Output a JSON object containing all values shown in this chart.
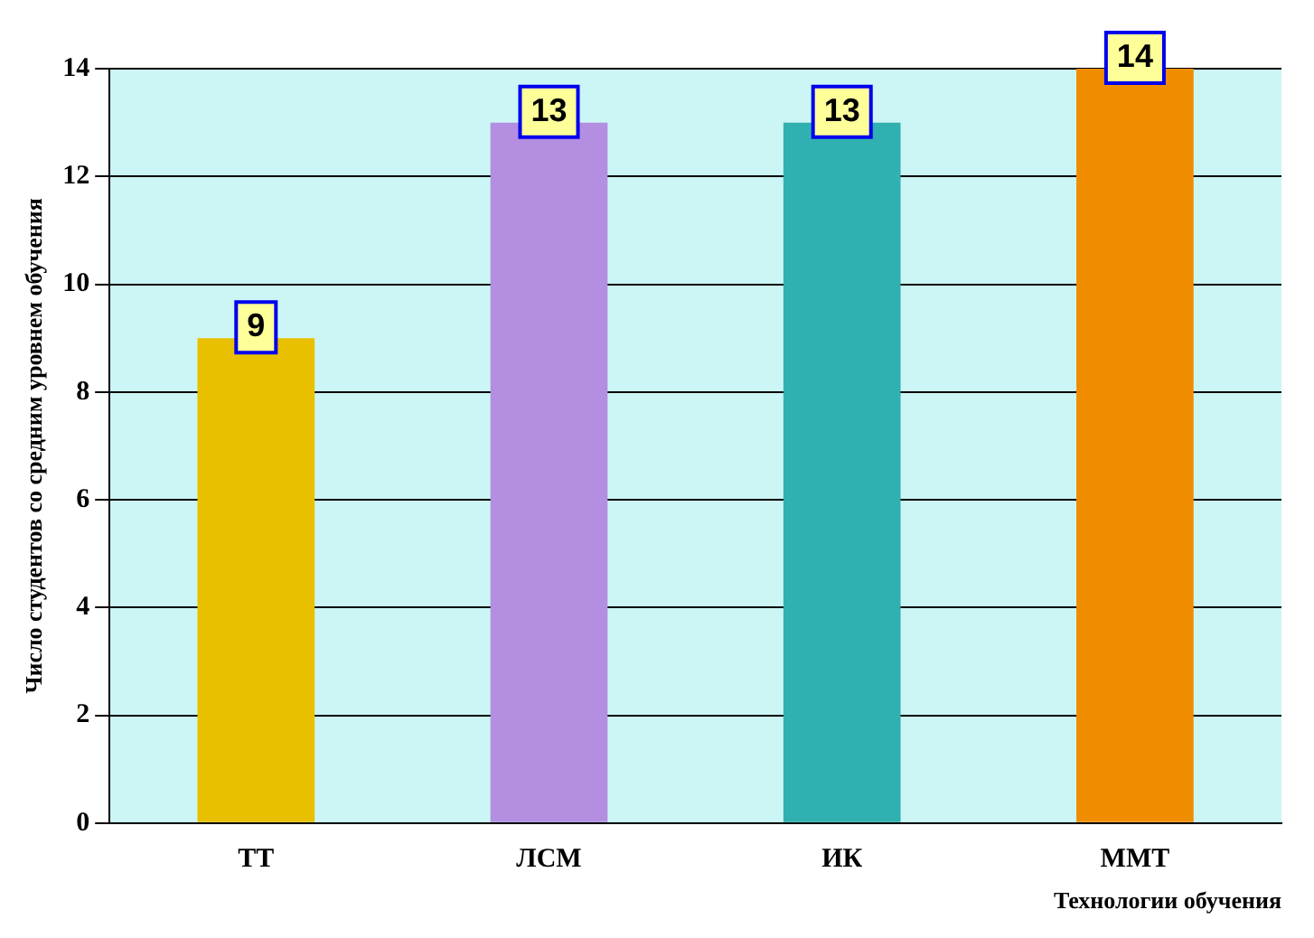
{
  "chart_data": {
    "type": "bar",
    "categories": [
      "ТТ",
      "ЛСМ",
      "ИК",
      "ММТ"
    ],
    "values": [
      9,
      13,
      13,
      14
    ],
    "colors": [
      "#e8c000",
      "#b48ee0",
      "#30b0b0",
      "#f08c00"
    ],
    "ylim": [
      0,
      14
    ],
    "yticks": [
      0,
      2,
      4,
      6,
      8,
      10,
      12,
      14
    ],
    "grid": "y",
    "data_labels": true,
    "ylabel": "Число студентов со средним уровнем обучения",
    "xlabel": "Технологии обучения"
  }
}
